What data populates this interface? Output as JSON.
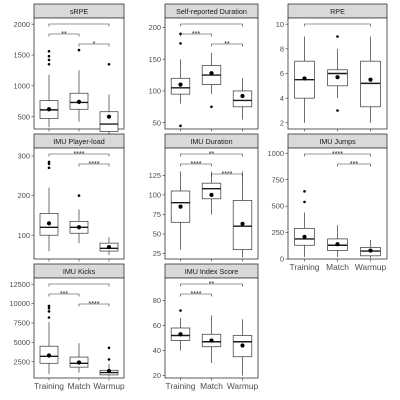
{
  "chart_data": [
    {
      "type": "box",
      "title": "sRPE",
      "categories": [
        "Training",
        "Match",
        "Warmup"
      ],
      "ylim": [
        300,
        2100
      ],
      "yticks": [
        500,
        1000,
        1500,
        2000
      ],
      "boxes": [
        {
          "q1": 470,
          "median": 610,
          "q3": 760,
          "low": 330,
          "high": 1180,
          "mean": 620,
          "outliers": [
            1350,
            1420,
            1480,
            1560
          ]
        },
        {
          "q1": 620,
          "median": 730,
          "q3": 880,
          "low": 420,
          "high": 1250,
          "mean": 740,
          "outliers": [
            1580
          ]
        },
        {
          "q1": 260,
          "median": 380,
          "q3": 580,
          "low": 120,
          "high": 860,
          "mean": 500,
          "outliers": [
            1350
          ]
        }
      ],
      "significance": [
        {
          "pair": [
            0,
            1
          ],
          "label": "**"
        },
        {
          "pair": [
            1,
            2
          ],
          "label": "*"
        },
        {
          "pair": [
            0,
            2
          ],
          "label": ""
        }
      ]
    },
    {
      "type": "box",
      "title": "Self-reported Duration",
      "categories": [
        "Training",
        "Match",
        "Warmup"
      ],
      "ylim": [
        40,
        215
      ],
      "yticks": [
        50,
        100,
        150,
        200
      ],
      "boxes": [
        {
          "q1": 95,
          "median": 105,
          "q3": 120,
          "low": 80,
          "high": 150,
          "mean": 110,
          "outliers": [
            175,
            190,
            45
          ]
        },
        {
          "q1": 110,
          "median": 125,
          "q3": 140,
          "low": 95,
          "high": 160,
          "mean": 128,
          "outliers": [
            75
          ]
        },
        {
          "q1": 75,
          "median": 85,
          "q3": 100,
          "low": 55,
          "high": 120,
          "mean": 92,
          "outliers": []
        }
      ],
      "significance": [
        {
          "pair": [
            0,
            1
          ],
          "label": "***"
        },
        {
          "pair": [
            1,
            2
          ],
          "label": "**"
        },
        {
          "pair": [
            0,
            2
          ],
          "label": ""
        }
      ]
    },
    {
      "type": "box",
      "title": "RPE",
      "categories": [
        "Training",
        "Match",
        "Warmup"
      ],
      "ylim": [
        1.5,
        10.5
      ],
      "yticks": [
        2,
        4,
        6,
        8,
        10
      ],
      "boxes": [
        {
          "q1": 4,
          "median": 5.5,
          "q3": 7,
          "low": 2,
          "high": 9,
          "mean": 5.6,
          "outliers": []
        },
        {
          "q1": 5,
          "median": 6,
          "q3": 6.3,
          "low": 4,
          "high": 8,
          "mean": 5.7,
          "outliers": [
            9,
            3
          ]
        },
        {
          "q1": 3.3,
          "median": 5.2,
          "q3": 7,
          "low": 2,
          "high": 9,
          "mean": 5.5,
          "outliers": []
        }
      ],
      "significance": [
        {
          "pair": [
            0,
            2
          ],
          "label": ""
        }
      ]
    },
    {
      "type": "box",
      "title": "IMU Player-load",
      "categories": [
        "Training",
        "Match",
        "Warmup"
      ],
      "ylim": [
        40,
        320
      ],
      "yticks": [
        100,
        200,
        300
      ],
      "boxes": [
        {
          "q1": 100,
          "median": 120,
          "q3": 155,
          "low": 60,
          "high": 220,
          "mean": 130,
          "outliers": [
            270,
            280,
            285
          ]
        },
        {
          "q1": 105,
          "median": 120,
          "q3": 135,
          "low": 80,
          "high": 165,
          "mean": 120,
          "outliers": [
            200
          ]
        },
        {
          "q1": 60,
          "median": 67,
          "q3": 80,
          "low": 50,
          "high": 95,
          "mean": 70,
          "outliers": []
        }
      ],
      "significance": [
        {
          "pair": [
            1,
            2
          ],
          "label": "****"
        },
        {
          "pair": [
            0,
            2
          ],
          "label": "****"
        }
      ]
    },
    {
      "type": "box",
      "title": "IMU Duration",
      "categories": [
        "Training",
        "Match",
        "Warmup"
      ],
      "ylim": [
        18,
        160
      ],
      "yticks": [
        25,
        50,
        75,
        100,
        125
      ],
      "boxes": [
        {
          "q1": 65,
          "median": 90,
          "q3": 105,
          "low": 30,
          "high": 130,
          "mean": 85,
          "outliers": []
        },
        {
          "q1": 95,
          "median": 108,
          "q3": 115,
          "low": 75,
          "high": 130,
          "mean": 100,
          "outliers": []
        },
        {
          "q1": 30,
          "median": 60,
          "q3": 93,
          "low": 20,
          "high": 130,
          "mean": 63,
          "outliers": []
        }
      ],
      "significance": [
        {
          "pair": [
            0,
            1
          ],
          "label": "****"
        },
        {
          "pair": [
            1,
            2
          ],
          "label": "****"
        },
        {
          "pair": [
            0,
            2
          ],
          "label": "**"
        }
      ]
    },
    {
      "type": "box",
      "title": "IMU Jumps",
      "categories": [
        "Training",
        "Match",
        "Warmup"
      ],
      "ylim": [
        0,
        1050
      ],
      "yticks": [
        0,
        250,
        500,
        750,
        1000
      ],
      "boxes": [
        {
          "q1": 130,
          "median": 190,
          "q3": 290,
          "low": 20,
          "high": 440,
          "mean": 210,
          "outliers": [
            540,
            640
          ]
        },
        {
          "q1": 80,
          "median": 130,
          "q3": 190,
          "low": 20,
          "high": 320,
          "mean": 140,
          "outliers": []
        },
        {
          "q1": 30,
          "median": 75,
          "q3": 110,
          "low": 10,
          "high": 180,
          "mean": 80,
          "outliers": []
        }
      ],
      "significance": [
        {
          "pair": [
            1,
            2
          ],
          "label": "***"
        },
        {
          "pair": [
            0,
            2
          ],
          "label": "****"
        }
      ]
    },
    {
      "type": "box",
      "title": "IMU Kicks",
      "categories": [
        "Training",
        "Match",
        "Warmup"
      ],
      "ylim": [
        400,
        13300
      ],
      "yticks": [
        2500,
        5000,
        7500,
        10000,
        12500
      ],
      "boxes": [
        {
          "q1": 2300,
          "median": 3200,
          "q3": 4500,
          "low": 900,
          "high": 7600,
          "mean": 3300,
          "outliers": [
            8200,
            9000,
            9400,
            9700
          ]
        },
        {
          "q1": 1800,
          "median": 2300,
          "q3": 3100,
          "low": 1100,
          "high": 4900,
          "mean": 2400,
          "outliers": []
        },
        {
          "q1": 800,
          "median": 1100,
          "q3": 1400,
          "low": 600,
          "high": 2200,
          "mean": 1300,
          "outliers": [
            2800,
            4300
          ]
        }
      ],
      "significance": [
        {
          "pair": [
            0,
            1
          ],
          "label": "***"
        },
        {
          "pair": [
            1,
            2
          ],
          "label": "****"
        },
        {
          "pair": [
            0,
            2
          ],
          "label": ""
        }
      ]
    },
    {
      "type": "box",
      "title": "IMU Index Score",
      "categories": [
        "Training",
        "Match",
        "Warmup"
      ],
      "ylim": [
        18,
        98
      ],
      "yticks": [
        20,
        40,
        60,
        80
      ],
      "boxes": [
        {
          "q1": 48,
          "median": 52,
          "q3": 58,
          "low": 40,
          "high": 66,
          "mean": 53,
          "outliers": [
            72
          ]
        },
        {
          "q1": 43,
          "median": 47,
          "q3": 53,
          "low": 30,
          "high": 68,
          "mean": 48,
          "outliers": []
        },
        {
          "q1": 35,
          "median": 47,
          "q3": 52,
          "low": 20,
          "high": 65,
          "mean": 44,
          "outliers": []
        }
      ],
      "significance": [
        {
          "pair": [
            0,
            1
          ],
          "label": "****"
        },
        {
          "pair": [
            0,
            2
          ],
          "label": "**"
        }
      ]
    }
  ]
}
